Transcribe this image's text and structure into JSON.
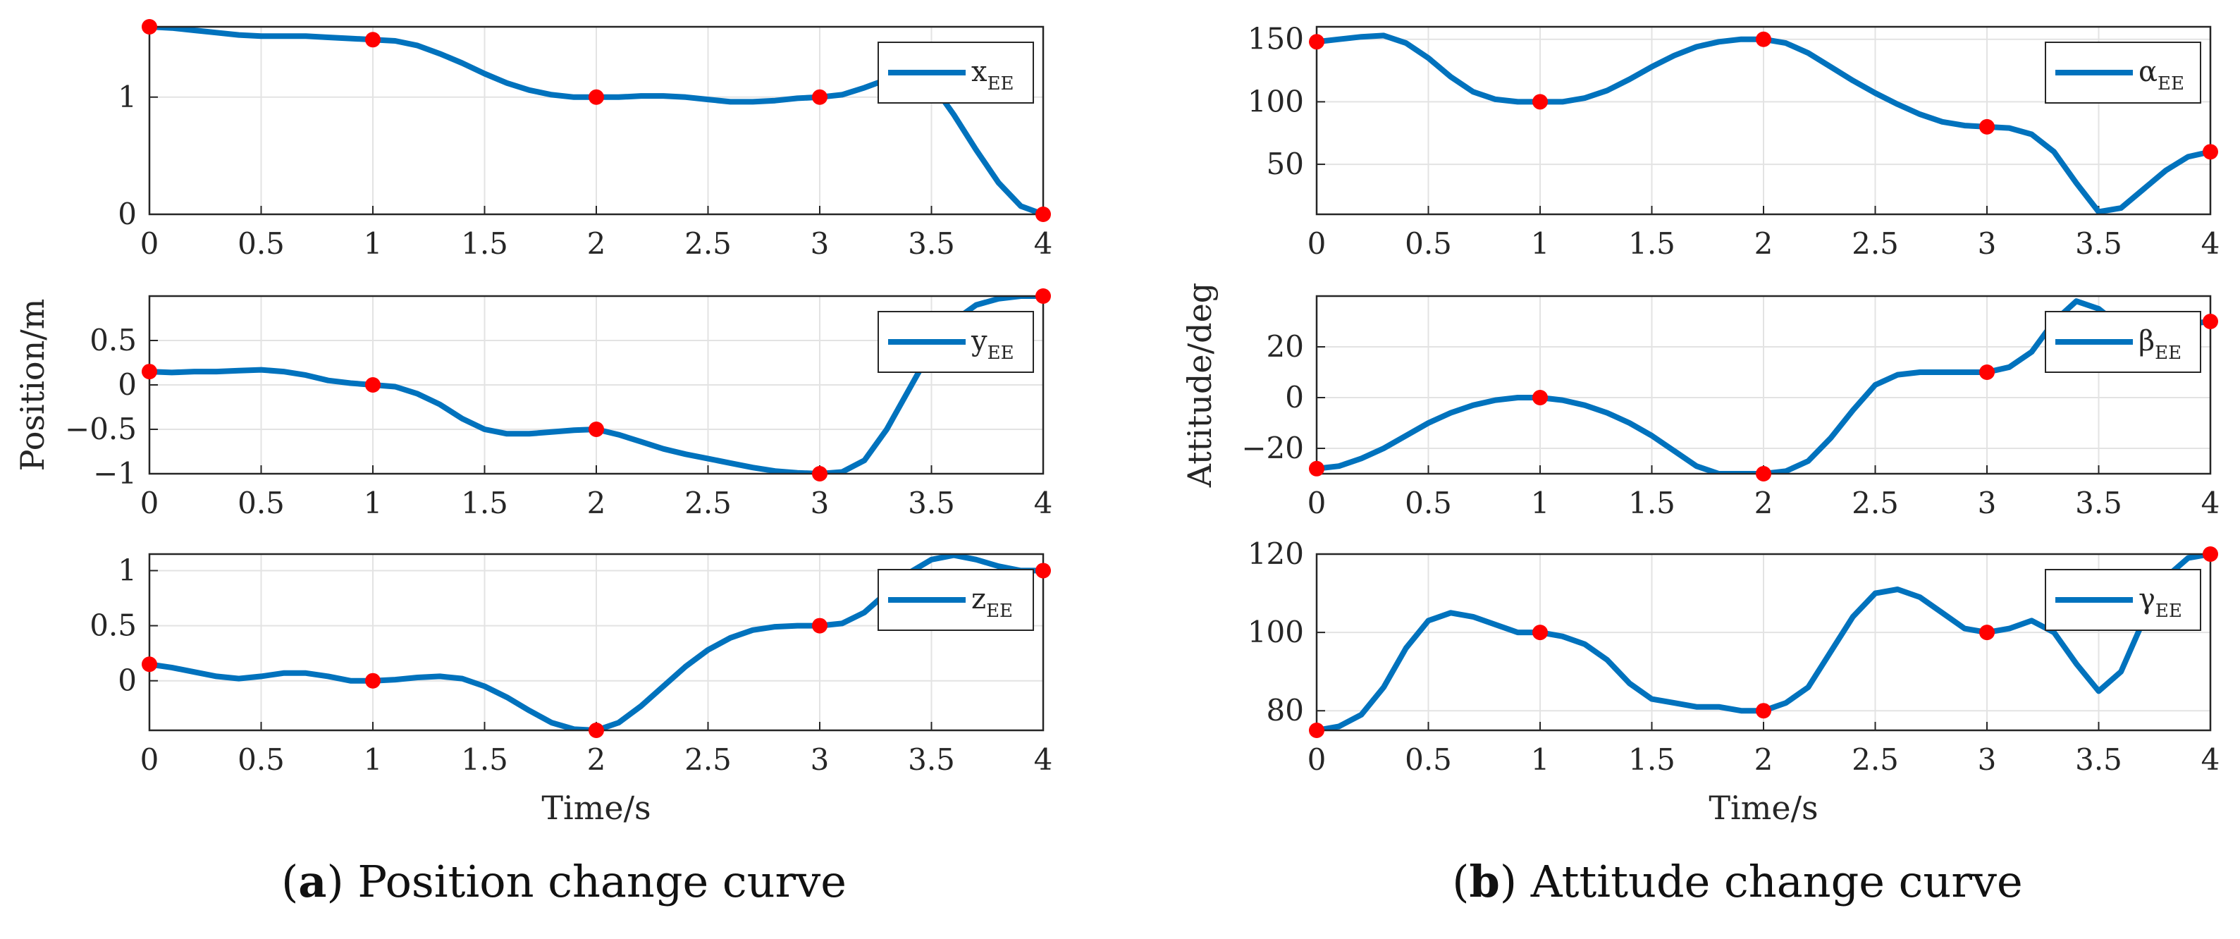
{
  "colors": {
    "line": "#0072BD",
    "marker": "#FF0000",
    "grid": "#e3e3e3",
    "axis": "#262626"
  },
  "captions": [
    {
      "label": "a",
      "text": " Position change curve"
    },
    {
      "label": "b",
      "text": " Attitude change curve"
    }
  ],
  "chart_data": [
    {
      "type": "line",
      "name": "x-position",
      "legend": "x",
      "legend_sub": "EE",
      "xlim": [
        0,
        4
      ],
      "ylim": [
        0,
        1.6
      ],
      "xticks": [
        0,
        0.5,
        1,
        1.5,
        2,
        2.5,
        3,
        3.5,
        4
      ],
      "xtick_labels": [
        "0",
        "0.5",
        "1",
        "1.5",
        "2",
        "2.5",
        "3",
        "3.5",
        "4"
      ],
      "yticks": [
        0,
        1
      ],
      "ytick_labels": [
        "0",
        "1"
      ],
      "xlabel": "",
      "ylabel": "",
      "x": [
        0,
        0.1,
        0.2,
        0.3,
        0.4,
        0.5,
        0.6,
        0.7,
        0.8,
        0.9,
        1,
        1.1,
        1.2,
        1.3,
        1.4,
        1.5,
        1.6,
        1.7,
        1.8,
        1.9,
        2,
        2.1,
        2.2,
        2.3,
        2.4,
        2.5,
        2.6,
        2.7,
        2.8,
        2.9,
        3,
        3.1,
        3.2,
        3.3,
        3.4,
        3.5,
        3.6,
        3.7,
        3.8,
        3.9,
        4
      ],
      "values": [
        1.6,
        1.59,
        1.57,
        1.55,
        1.53,
        1.52,
        1.52,
        1.52,
        1.51,
        1.5,
        1.49,
        1.48,
        1.44,
        1.37,
        1.29,
        1.2,
        1.12,
        1.06,
        1.02,
        1.0,
        1.0,
        1.0,
        1.01,
        1.01,
        1.0,
        0.98,
        0.96,
        0.96,
        0.97,
        0.99,
        1.0,
        1.02,
        1.08,
        1.15,
        1.22,
        1.12,
        0.85,
        0.55,
        0.27,
        0.07,
        0.0
      ],
      "waypoints": {
        "x": [
          0,
          1,
          2,
          3,
          4
        ],
        "y": [
          1.6,
          1.49,
          1.0,
          1.0,
          0.0
        ]
      }
    },
    {
      "type": "line",
      "name": "y-position",
      "legend": "y",
      "legend_sub": "EE",
      "xlim": [
        0,
        4
      ],
      "ylim": [
        -1,
        1
      ],
      "xticks": [
        0,
        0.5,
        1,
        1.5,
        2,
        2.5,
        3,
        3.5,
        4
      ],
      "xtick_labels": [
        "0",
        "0.5",
        "1",
        "1.5",
        "2",
        "2.5",
        "3",
        "3.5",
        "4"
      ],
      "yticks": [
        -1,
        -0.5,
        0,
        0.5
      ],
      "ytick_labels": [
        "−1",
        "−0.5",
        "0",
        "0.5"
      ],
      "xlabel": "",
      "ylabel": "Position/m",
      "x": [
        0,
        0.1,
        0.2,
        0.3,
        0.4,
        0.5,
        0.6,
        0.7,
        0.8,
        0.9,
        1,
        1.1,
        1.2,
        1.3,
        1.4,
        1.5,
        1.6,
        1.7,
        1.8,
        1.9,
        2,
        2.1,
        2.2,
        2.3,
        2.4,
        2.5,
        2.6,
        2.7,
        2.8,
        2.9,
        3,
        3.1,
        3.2,
        3.3,
        3.4,
        3.5,
        3.6,
        3.7,
        3.8,
        3.9,
        4
      ],
      "values": [
        0.15,
        0.14,
        0.15,
        0.15,
        0.16,
        0.17,
        0.15,
        0.11,
        0.05,
        0.02,
        0.0,
        -0.02,
        -0.1,
        -0.22,
        -0.38,
        -0.5,
        -0.55,
        -0.55,
        -0.53,
        -0.51,
        -0.5,
        -0.56,
        -0.64,
        -0.72,
        -0.78,
        -0.83,
        -0.88,
        -0.93,
        -0.97,
        -0.99,
        -1.0,
        -0.98,
        -0.85,
        -0.5,
        -0.05,
        0.4,
        0.72,
        0.9,
        0.97,
        1.0,
        1.0
      ],
      "waypoints": {
        "x": [
          0,
          1,
          2,
          3,
          4
        ],
        "y": [
          0.15,
          0.0,
          -0.5,
          -1.0,
          1.0
        ]
      }
    },
    {
      "type": "line",
      "name": "z-position",
      "legend": "z",
      "legend_sub": "EE",
      "xlim": [
        0,
        4
      ],
      "ylim": [
        -0.45,
        1.15
      ],
      "xticks": [
        0,
        0.5,
        1,
        1.5,
        2,
        2.5,
        3,
        3.5,
        4
      ],
      "xtick_labels": [
        "0",
        "0.5",
        "1",
        "1.5",
        "2",
        "2.5",
        "3",
        "3.5",
        "4"
      ],
      "yticks": [
        0,
        0.5,
        1
      ],
      "ytick_labels": [
        "0",
        "0.5",
        "1"
      ],
      "xlabel": "Time/s",
      "ylabel": "",
      "x": [
        0,
        0.1,
        0.2,
        0.3,
        0.4,
        0.5,
        0.6,
        0.7,
        0.8,
        0.9,
        1,
        1.1,
        1.2,
        1.3,
        1.4,
        1.5,
        1.6,
        1.7,
        1.8,
        1.9,
        2,
        2.1,
        2.2,
        2.3,
        2.4,
        2.5,
        2.6,
        2.7,
        2.8,
        2.9,
        3,
        3.1,
        3.2,
        3.3,
        3.4,
        3.5,
        3.6,
        3.7,
        3.8,
        3.9,
        4
      ],
      "values": [
        0.15,
        0.12,
        0.08,
        0.04,
        0.02,
        0.04,
        0.07,
        0.07,
        0.04,
        0.0,
        0.0,
        0.01,
        0.03,
        0.04,
        0.02,
        -0.05,
        -0.15,
        -0.27,
        -0.38,
        -0.44,
        -0.45,
        -0.38,
        -0.23,
        -0.05,
        0.13,
        0.28,
        0.39,
        0.46,
        0.49,
        0.5,
        0.5,
        0.52,
        0.62,
        0.8,
        0.98,
        1.1,
        1.14,
        1.1,
        1.04,
        1.0,
        1.0
      ],
      "waypoints": {
        "x": [
          0,
          1,
          2,
          3,
          4
        ],
        "y": [
          0.15,
          0.0,
          -0.45,
          0.5,
          1.0
        ]
      }
    },
    {
      "type": "line",
      "name": "alpha-attitude",
      "legend": "α",
      "legend_sub": "EE",
      "xlim": [
        0,
        4
      ],
      "ylim": [
        10,
        160
      ],
      "xticks": [
        0,
        0.5,
        1,
        1.5,
        2,
        2.5,
        3,
        3.5,
        4
      ],
      "xtick_labels": [
        "0",
        "0.5",
        "1",
        "1.5",
        "2",
        "2.5",
        "3",
        "3.5",
        "4"
      ],
      "yticks": [
        50,
        100,
        150
      ],
      "ytick_labels": [
        "50",
        "100",
        "150"
      ],
      "xlabel": "",
      "ylabel": "",
      "x": [
        0,
        0.1,
        0.2,
        0.3,
        0.4,
        0.5,
        0.6,
        0.7,
        0.8,
        0.9,
        1,
        1.1,
        1.2,
        1.3,
        1.4,
        1.5,
        1.6,
        1.7,
        1.8,
        1.9,
        2,
        2.1,
        2.2,
        2.3,
        2.4,
        2.5,
        2.6,
        2.7,
        2.8,
        2.9,
        3,
        3.1,
        3.2,
        3.3,
        3.4,
        3.5,
        3.6,
        3.7,
        3.8,
        3.9,
        4
      ],
      "values": [
        148,
        150,
        152,
        153,
        147,
        135,
        120,
        108,
        102,
        100,
        100,
        100,
        103,
        109,
        118,
        128,
        137,
        144,
        148,
        150,
        150,
        147,
        139,
        128,
        117,
        107,
        98,
        90,
        84,
        81,
        80,
        79,
        74,
        60,
        35,
        12,
        15,
        30,
        45,
        56,
        60
      ],
      "waypoints": {
        "x": [
          0,
          1,
          2,
          3,
          4
        ],
        "y": [
          148,
          100,
          150,
          80,
          60
        ]
      }
    },
    {
      "type": "line",
      "name": "beta-attitude",
      "legend": "β",
      "legend_sub": "EE",
      "xlim": [
        0,
        4
      ],
      "ylim": [
        -30,
        40
      ],
      "xticks": [
        0,
        0.5,
        1,
        1.5,
        2,
        2.5,
        3,
        3.5,
        4
      ],
      "xtick_labels": [
        "0",
        "0.5",
        "1",
        "1.5",
        "2",
        "2.5",
        "3",
        "3.5",
        "4"
      ],
      "yticks": [
        -20,
        0,
        20
      ],
      "ytick_labels": [
        "−20",
        "0",
        "20"
      ],
      "xlabel": "",
      "ylabel": "Attitude/deg",
      "x": [
        0,
        0.1,
        0.2,
        0.3,
        0.4,
        0.5,
        0.6,
        0.7,
        0.8,
        0.9,
        1,
        1.1,
        1.2,
        1.3,
        1.4,
        1.5,
        1.6,
        1.7,
        1.8,
        1.9,
        2,
        2.1,
        2.2,
        2.3,
        2.4,
        2.5,
        2.6,
        2.7,
        2.8,
        2.9,
        3,
        3.1,
        3.2,
        3.3,
        3.4,
        3.5,
        3.6,
        3.7,
        3.8,
        3.9,
        4
      ],
      "values": [
        -28,
        -27,
        -24,
        -20,
        -15,
        -10,
        -6,
        -3,
        -1,
        0,
        0,
        -1,
        -3,
        -6,
        -10,
        -15,
        -21,
        -27,
        -30,
        -30,
        -30,
        -29,
        -25,
        -16,
        -5,
        5,
        9,
        10,
        10,
        10,
        10,
        12,
        18,
        30,
        38,
        35,
        28,
        26,
        27,
        29,
        30
      ],
      "waypoints": {
        "x": [
          0,
          1,
          2,
          3,
          4
        ],
        "y": [
          -28,
          0,
          -30,
          10,
          30
        ]
      }
    },
    {
      "type": "line",
      "name": "gamma-attitude",
      "legend": "γ",
      "legend_sub": "EE",
      "xlim": [
        0,
        4
      ],
      "ylim": [
        75,
        120
      ],
      "xticks": [
        0,
        0.5,
        1,
        1.5,
        2,
        2.5,
        3,
        3.5,
        4
      ],
      "xtick_labels": [
        "0",
        "0.5",
        "1",
        "1.5",
        "2",
        "2.5",
        "3",
        "3.5",
        "4"
      ],
      "yticks": [
        80,
        100,
        120
      ],
      "ytick_labels": [
        "80",
        "100",
        "120"
      ],
      "xlabel": "Time/s",
      "ylabel": "",
      "x": [
        0,
        0.1,
        0.2,
        0.3,
        0.4,
        0.5,
        0.6,
        0.7,
        0.8,
        0.9,
        1,
        1.1,
        1.2,
        1.3,
        1.4,
        1.5,
        1.6,
        1.7,
        1.8,
        1.9,
        2,
        2.1,
        2.2,
        2.3,
        2.4,
        2.5,
        2.6,
        2.7,
        2.8,
        2.9,
        3,
        3.1,
        3.2,
        3.3,
        3.4,
        3.5,
        3.6,
        3.7,
        3.8,
        3.9,
        4
      ],
      "values": [
        75,
        76,
        79,
        86,
        96,
        103,
        105,
        104,
        102,
        100,
        100,
        99,
        97,
        93,
        87,
        83,
        82,
        81,
        81,
        80,
        80,
        82,
        86,
        95,
        104,
        110,
        111,
        109,
        105,
        101,
        100,
        101,
        103,
        100,
        92,
        85,
        90,
        103,
        114,
        119,
        120
      ],
      "waypoints": {
        "x": [
          0,
          1,
          2,
          3,
          4
        ],
        "y": [
          75,
          100,
          80,
          100,
          120
        ]
      }
    }
  ]
}
